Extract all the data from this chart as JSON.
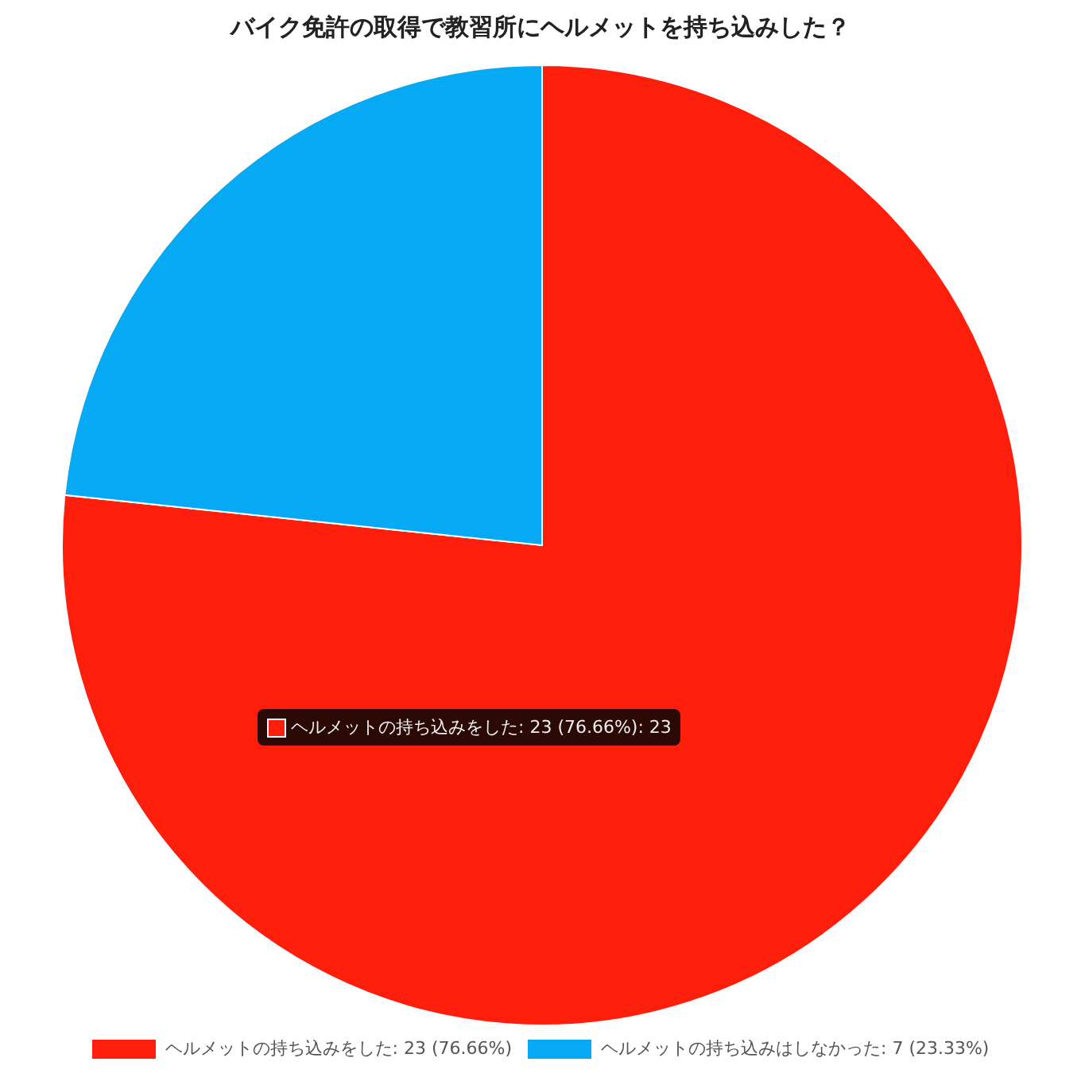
{
  "chart_data": {
    "type": "pie",
    "title": "バイク免許の取得で教習所にヘルメットを持ち込みした？",
    "categories": [
      "ヘルメットの持ち込みをした",
      "ヘルメットの持ち込みはしなかった"
    ],
    "values": [
      23,
      7
    ],
    "colors": [
      "#fe1e0c",
      "#05a9f4"
    ],
    "value_labels": [
      "23 (76.66%)",
      "7 (23.33%)"
    ],
    "legend": "bottom",
    "annotations": [
      "ヘルメットの持ち込みをした: 23 (76.66%): 23"
    ]
  }
}
